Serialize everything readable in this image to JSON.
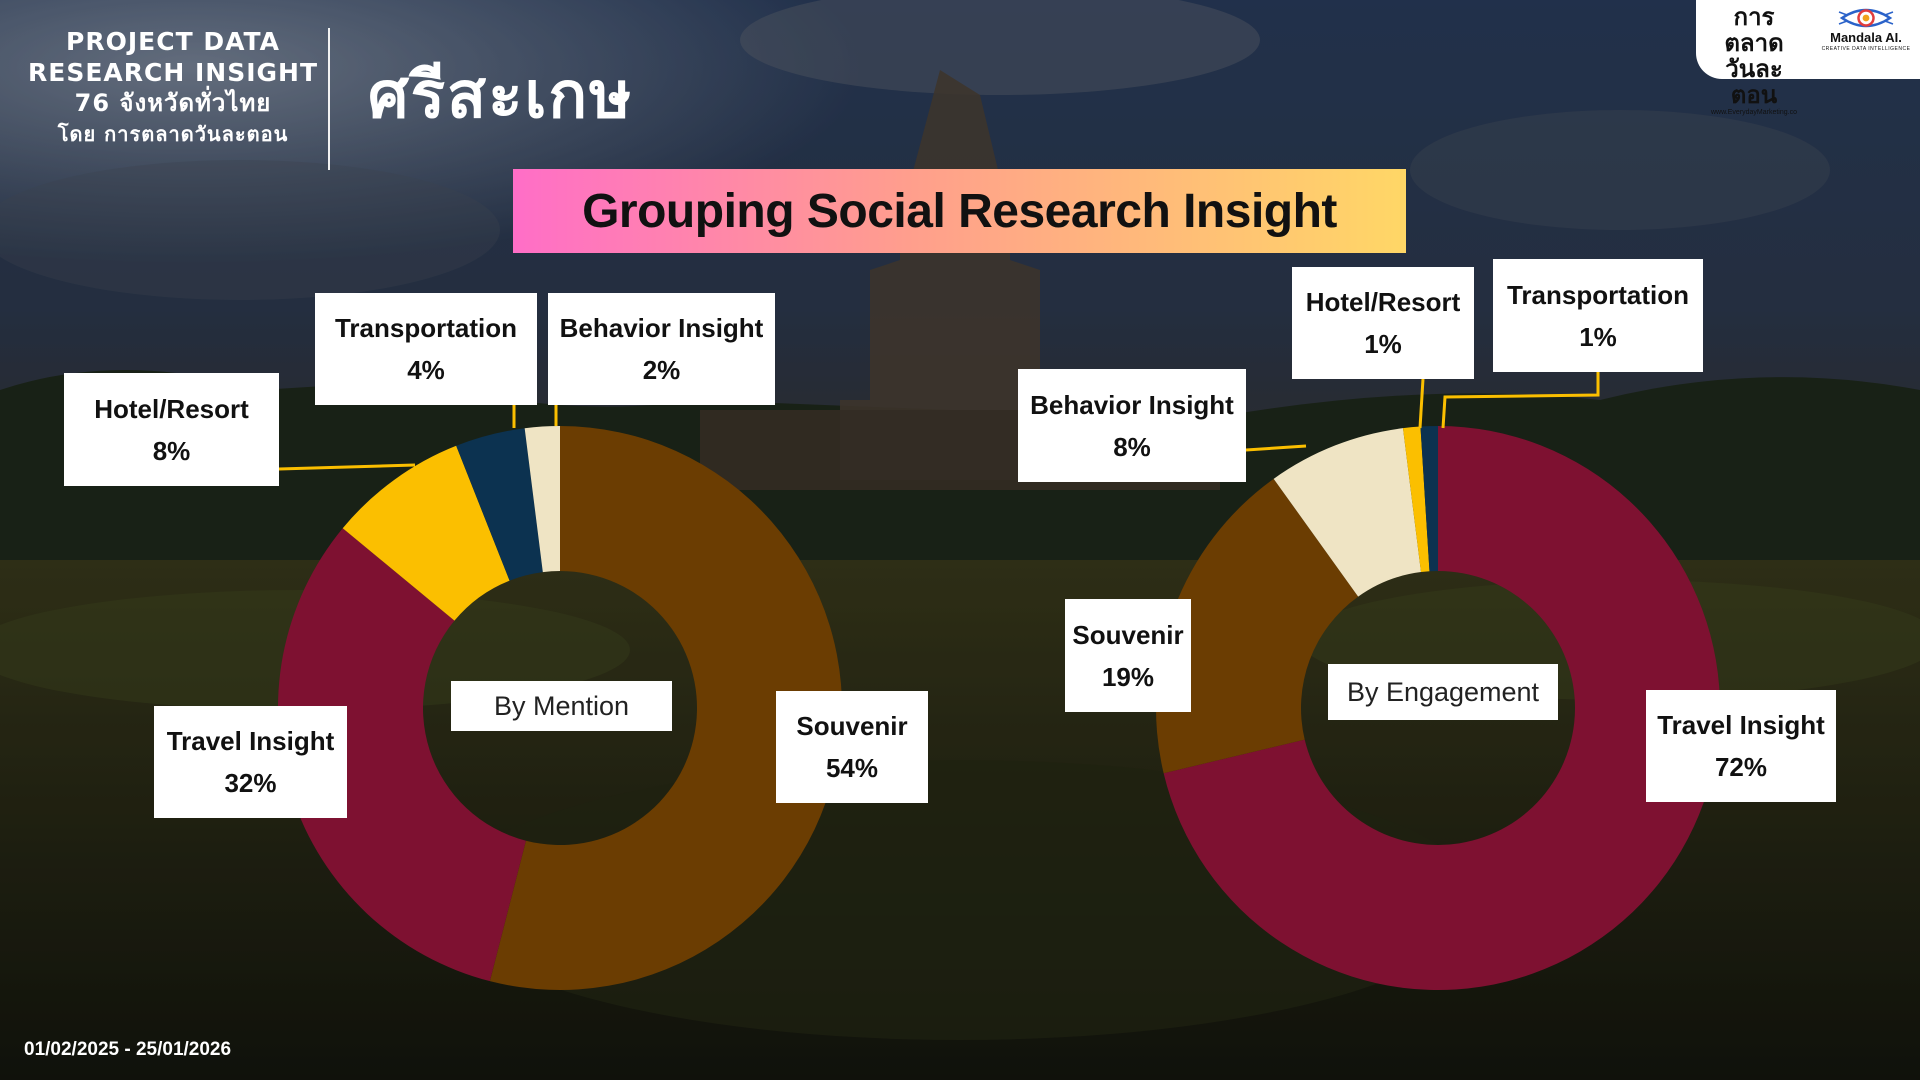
{
  "header": {
    "line1": "PROJECT DATA",
    "line2": "RESEARCH INSIGHT",
    "line3": "76 จังหวัดทั่วไทย",
    "line4": "โดย การตลาดวันละตอน",
    "province": "ศรีสะเกษ"
  },
  "title": "Grouping Social Research Insight",
  "logos": {
    "primary_line1": "การตลาด",
    "primary_line2": "วันละตอน",
    "primary_url": "www.EverydayMarketing.co",
    "secondary_name": "Mandala AI.",
    "secondary_tagline": "CREATIVE DATA INTELLIGENCE"
  },
  "date_range": "01/02/2025 - 25/01/2026",
  "colors": {
    "Souvenir": "#6b3d02",
    "Travel Insight": "#7e1131",
    "Hotel/Resort": "#fbbf00",
    "Transportation": "#0c3250",
    "Behavior Insight": "#efe4c4",
    "leader_line": "#fbbf00",
    "title_gradient": [
      "#ff6ec7",
      "#ffd766"
    ]
  },
  "chart_data": [
    {
      "type": "pie",
      "center_label": "By Mention",
      "categories": [
        "Souvenir",
        "Travel Insight",
        "Hotel/Resort",
        "Transportation",
        "Behavior Insight"
      ],
      "values": [
        54,
        32,
        8,
        4,
        2
      ],
      "value_labels": [
        "54%",
        "32%",
        "8%",
        "4%",
        "2%"
      ]
    },
    {
      "type": "pie",
      "center_label": "By Engagement",
      "categories": [
        "Travel Insight",
        "Souvenir",
        "Behavior Insight",
        "Hotel/Resort",
        "Transportation"
      ],
      "values": [
        72,
        19,
        8,
        1,
        1
      ],
      "value_labels": [
        "72%",
        "19%",
        "8%",
        "1%",
        "1%"
      ]
    }
  ]
}
